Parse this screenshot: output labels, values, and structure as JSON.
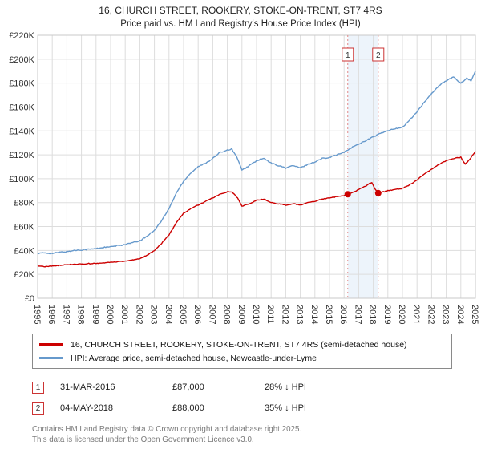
{
  "header": {
    "title": "16, CHURCH STREET, ROOKERY, STOKE-ON-TRENT, ST7 4RS",
    "subtitle": "Price paid vs. HM Land Registry's House Price Index (HPI)"
  },
  "chart_data": {
    "type": "line",
    "x_range": [
      1995,
      2025
    ],
    "y_range": [
      0,
      220
    ],
    "y_units": "GBP thousands",
    "x_ticks": [
      1995,
      1996,
      1997,
      1998,
      1999,
      2000,
      2001,
      2002,
      2003,
      2004,
      2005,
      2006,
      2007,
      2008,
      2009,
      2010,
      2011,
      2012,
      2013,
      2014,
      2015,
      2016,
      2017,
      2018,
      2019,
      2020,
      2021,
      2022,
      2023,
      2024,
      2025
    ],
    "y_ticks": [
      [
        0,
        "£0"
      ],
      [
        20,
        "£20K"
      ],
      [
        40,
        "£40K"
      ],
      [
        60,
        "£60K"
      ],
      [
        80,
        "£80K"
      ],
      [
        100,
        "£100K"
      ],
      [
        120,
        "£120K"
      ],
      [
        140,
        "£140K"
      ],
      [
        160,
        "£160K"
      ],
      [
        180,
        "£180K"
      ],
      [
        200,
        "£200K"
      ],
      [
        220,
        "£220K"
      ]
    ],
    "grid": true,
    "colors": {
      "grid": "#dddddd",
      "frame": "#c9c9c9",
      "band": "#dce9f7",
      "dashed": "#e08888",
      "annotation_border": "#cc3333",
      "axis_text": "#333333"
    },
    "band": {
      "x1": 2016.25,
      "x2": 2018.34
    },
    "markers": [
      {
        "label": "1",
        "x": 2016.25,
        "y": 87
      },
      {
        "label": "2",
        "x": 2018.34,
        "y": 88
      }
    ],
    "series": [
      {
        "name": "HPI: Average price, semi-detached house, Newcastle-under-Lyme",
        "color": "#6699cc",
        "jitter": 0.9,
        "points": [
          [
            1995.0,
            37.5
          ],
          [
            1995.5,
            38
          ],
          [
            1996.0,
            37.5
          ],
          [
            1996.5,
            38.5
          ],
          [
            1997.0,
            39
          ],
          [
            1997.5,
            40
          ],
          [
            1998.0,
            40.5
          ],
          [
            1998.5,
            41
          ],
          [
            1999.0,
            41.5
          ],
          [
            1999.5,
            42.5
          ],
          [
            2000.0,
            43
          ],
          [
            2000.5,
            44
          ],
          [
            2001.0,
            45
          ],
          [
            2001.5,
            46.5
          ],
          [
            2002.0,
            48
          ],
          [
            2002.5,
            52
          ],
          [
            2003.0,
            57
          ],
          [
            2003.5,
            65
          ],
          [
            2004.0,
            75
          ],
          [
            2004.5,
            88
          ],
          [
            2005.0,
            98
          ],
          [
            2005.5,
            105
          ],
          [
            2006.0,
            110
          ],
          [
            2006.5,
            113
          ],
          [
            2007.0,
            117
          ],
          [
            2007.5,
            122
          ],
          [
            2008.0,
            124
          ],
          [
            2008.3,
            125
          ],
          [
            2008.7,
            117
          ],
          [
            2009.0,
            107
          ],
          [
            2009.5,
            111
          ],
          [
            2010.0,
            115
          ],
          [
            2010.5,
            117
          ],
          [
            2011.0,
            113
          ],
          [
            2011.5,
            111
          ],
          [
            2012.0,
            109
          ],
          [
            2012.5,
            111
          ],
          [
            2013.0,
            109
          ],
          [
            2013.5,
            112
          ],
          [
            2014.0,
            114
          ],
          [
            2014.5,
            117
          ],
          [
            2015.0,
            118
          ],
          [
            2015.5,
            120
          ],
          [
            2016.0,
            122
          ],
          [
            2016.5,
            126
          ],
          [
            2017.0,
            129
          ],
          [
            2017.5,
            132
          ],
          [
            2018.0,
            135
          ],
          [
            2018.5,
            138
          ],
          [
            2019.0,
            140
          ],
          [
            2019.5,
            142
          ],
          [
            2020.0,
            143
          ],
          [
            2020.5,
            149
          ],
          [
            2021.0,
            156
          ],
          [
            2021.5,
            164
          ],
          [
            2022.0,
            171
          ],
          [
            2022.5,
            178
          ],
          [
            2023.0,
            182
          ],
          [
            2023.5,
            185
          ],
          [
            2024.0,
            180
          ],
          [
            2024.4,
            184
          ],
          [
            2024.7,
            182
          ],
          [
            2025.0,
            190
          ]
        ]
      },
      {
        "name": "16, CHURCH STREET, ROOKERY, STOKE-ON-TRENT, ST7 4RS (semi-detached house)",
        "color": "#cc0000",
        "jitter": 0.6,
        "points": [
          [
            1995.0,
            27
          ],
          [
            1995.5,
            26.5
          ],
          [
            1996.0,
            27
          ],
          [
            1996.5,
            27.5
          ],
          [
            1997.0,
            28
          ],
          [
            1997.5,
            28.5
          ],
          [
            1998.0,
            28.5
          ],
          [
            1998.5,
            29
          ],
          [
            1999.0,
            29
          ],
          [
            1999.5,
            29.5
          ],
          [
            2000.0,
            30
          ],
          [
            2000.5,
            30.5
          ],
          [
            2001.0,
            31
          ],
          [
            2001.5,
            32
          ],
          [
            2002.0,
            33
          ],
          [
            2002.5,
            36
          ],
          [
            2003.0,
            40
          ],
          [
            2003.5,
            46
          ],
          [
            2004.0,
            53
          ],
          [
            2004.5,
            63
          ],
          [
            2005.0,
            71
          ],
          [
            2005.5,
            75
          ],
          [
            2006.0,
            78
          ],
          [
            2006.5,
            81
          ],
          [
            2007.0,
            84
          ],
          [
            2007.5,
            87
          ],
          [
            2008.0,
            89
          ],
          [
            2008.3,
            89
          ],
          [
            2008.7,
            84
          ],
          [
            2009.0,
            77
          ],
          [
            2009.5,
            79
          ],
          [
            2010.0,
            82
          ],
          [
            2010.5,
            83
          ],
          [
            2011.0,
            80
          ],
          [
            2011.5,
            79
          ],
          [
            2012.0,
            78
          ],
          [
            2012.5,
            79
          ],
          [
            2013.0,
            78
          ],
          [
            2013.5,
            80
          ],
          [
            2014.0,
            81
          ],
          [
            2014.5,
            83
          ],
          [
            2015.0,
            84
          ],
          [
            2015.5,
            85
          ],
          [
            2016.0,
            86
          ],
          [
            2016.25,
            87
          ],
          [
            2016.7,
            89
          ],
          [
            2017.0,
            91
          ],
          [
            2017.5,
            94
          ],
          [
            2017.9,
            97
          ],
          [
            2018.1,
            92
          ],
          [
            2018.34,
            88
          ],
          [
            2018.7,
            89
          ],
          [
            2019.0,
            90
          ],
          [
            2019.5,
            91
          ],
          [
            2020.0,
            92
          ],
          [
            2020.5,
            95
          ],
          [
            2021.0,
            99
          ],
          [
            2021.5,
            104
          ],
          [
            2022.0,
            108
          ],
          [
            2022.5,
            112
          ],
          [
            2023.0,
            115
          ],
          [
            2023.5,
            117
          ],
          [
            2024.0,
            118
          ],
          [
            2024.3,
            112
          ],
          [
            2024.6,
            116
          ],
          [
            2025.0,
            123
          ]
        ]
      }
    ]
  },
  "legend": {
    "items": [
      {
        "label": "16, CHURCH STREET, ROOKERY, STOKE-ON-TRENT, ST7 4RS (semi-detached house)",
        "color": "#cc0000"
      },
      {
        "label": "HPI: Average price, semi-detached house, Newcastle-under-Lyme",
        "color": "#6699cc"
      }
    ]
  },
  "annotations": [
    {
      "num": "1",
      "date": "31-MAR-2016",
      "price": "£87,000",
      "hpi": "28% ↓ HPI"
    },
    {
      "num": "2",
      "date": "04-MAY-2018",
      "price": "£88,000",
      "hpi": "35% ↓ HPI"
    }
  ],
  "footer": {
    "line1": "Contains HM Land Registry data © Crown copyright and database right 2025.",
    "line2": "This data is licensed under the Open Government Licence v3.0."
  }
}
